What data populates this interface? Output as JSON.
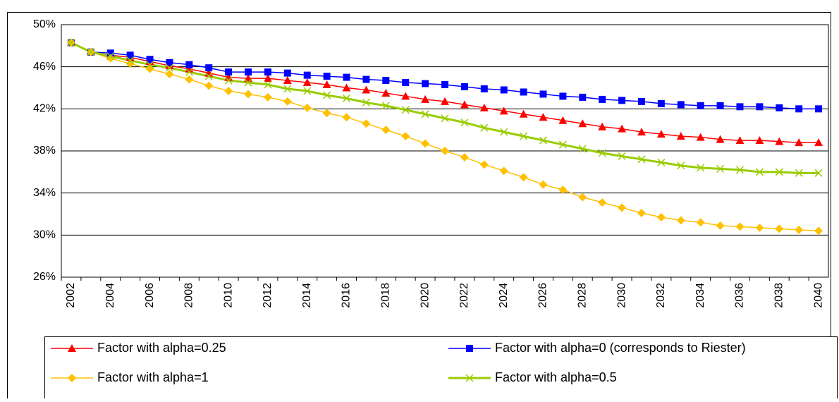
{
  "chart_data": {
    "type": "line",
    "categories": [
      "2002",
      null,
      "2004",
      null,
      "2006",
      null,
      "2008",
      null,
      "2010",
      null,
      "2012",
      null,
      "2014",
      null,
      "2016",
      null,
      "2018",
      null,
      "2020",
      null,
      "2022",
      null,
      "2024",
      null,
      "2026",
      null,
      "2028",
      null,
      "2030",
      null,
      "2032",
      null,
      "2034",
      null,
      "2036",
      null,
      "2038",
      null,
      "2040"
    ],
    "series": [
      {
        "name": "Factor with alpha=0.25",
        "color": "#ff0000",
        "marker": "triangle",
        "values": [
          48.3,
          47.4,
          47.1,
          46.9,
          46.5,
          46.1,
          45.8,
          45.4,
          45.0,
          44.9,
          44.9,
          44.7,
          44.5,
          44.3,
          44.0,
          43.8,
          43.5,
          43.2,
          42.9,
          42.7,
          42.4,
          42.1,
          41.8,
          41.5,
          41.2,
          40.9,
          40.6,
          40.3,
          40.1,
          39.8,
          39.6,
          39.4,
          39.3,
          39.1,
          39.0,
          39.0,
          38.9,
          38.8,
          38.8
        ]
      },
      {
        "name": "Factor with alpha=0 (corresponds to Riester)",
        "color": "#0000ff",
        "marker": "square",
        "values": [
          48.3,
          47.4,
          47.3,
          47.1,
          46.7,
          46.4,
          46.2,
          45.9,
          45.5,
          45.5,
          45.5,
          45.4,
          45.2,
          45.1,
          45.0,
          44.8,
          44.7,
          44.5,
          44.4,
          44.3,
          44.1,
          43.9,
          43.8,
          43.6,
          43.4,
          43.2,
          43.1,
          42.9,
          42.8,
          42.7,
          42.5,
          42.4,
          42.3,
          42.3,
          42.2,
          42.2,
          42.1,
          42.0,
          42.0
        ]
      },
      {
        "name": "Factor with alpha=1",
        "color": "#ffc000",
        "marker": "diamond",
        "values": [
          48.3,
          47.4,
          46.8,
          46.3,
          45.8,
          45.3,
          44.8,
          44.2,
          43.7,
          43.4,
          43.1,
          42.7,
          42.1,
          41.6,
          41.2,
          40.6,
          40.0,
          39.4,
          38.7,
          38.0,
          37.4,
          36.7,
          36.1,
          35.5,
          34.8,
          34.3,
          33.6,
          33.1,
          32.6,
          32.1,
          31.7,
          31.4,
          31.2,
          30.9,
          30.8,
          30.7,
          30.6,
          30.5,
          30.4
        ]
      },
      {
        "name": "Factor with alpha=0.5",
        "color": "#99cc00",
        "marker": "x",
        "values": [
          48.3,
          47.4,
          47.0,
          46.6,
          46.2,
          45.9,
          45.5,
          45.1,
          44.7,
          44.5,
          44.3,
          43.9,
          43.7,
          43.3,
          43.0,
          42.6,
          42.3,
          41.9,
          41.5,
          41.1,
          40.7,
          40.2,
          39.8,
          39.4,
          39.0,
          38.6,
          38.2,
          37.8,
          37.5,
          37.2,
          36.9,
          36.6,
          36.4,
          36.3,
          36.2,
          36.0,
          36.0,
          35.9,
          35.9
        ]
      }
    ],
    "ylim": [
      26,
      50
    ],
    "yticks": [
      {
        "value": 26,
        "label": "26%"
      },
      {
        "value": 30,
        "label": "30%"
      },
      {
        "value": 34,
        "label": "34%"
      },
      {
        "value": 38,
        "label": "38%"
      },
      {
        "value": 42,
        "label": "42%"
      },
      {
        "value": 46,
        "label": "46%"
      },
      {
        "value": 50,
        "label": "50%"
      }
    ],
    "grid": true
  }
}
